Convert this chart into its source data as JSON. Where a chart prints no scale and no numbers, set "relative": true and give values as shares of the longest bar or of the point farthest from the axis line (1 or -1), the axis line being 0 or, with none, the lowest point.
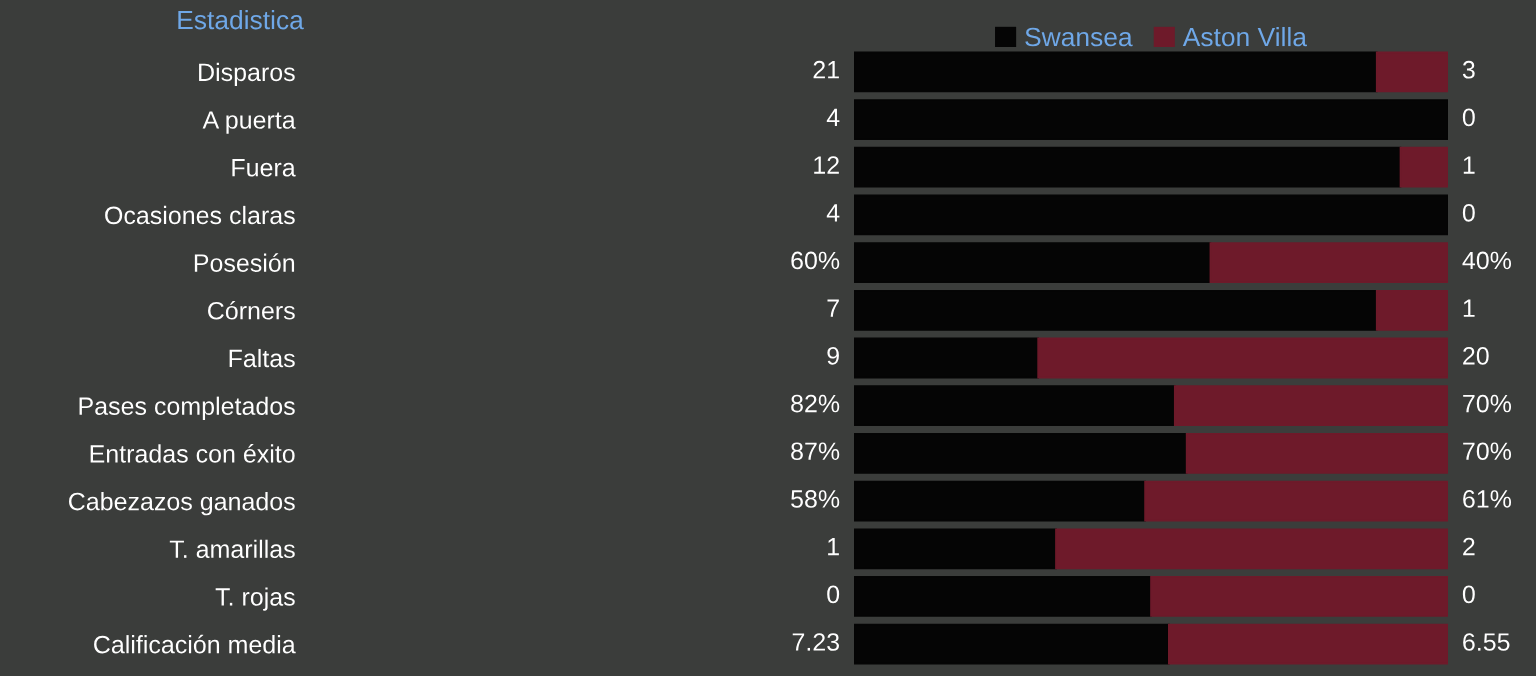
{
  "chart_data": {
    "type": "bar",
    "orientation": "horizontal",
    "stacked": true,
    "relative": true,
    "ylabel": "Estadistica",
    "legend": "top",
    "grid": false,
    "categories": [
      "Disparos",
      "A puerta",
      "Fuera",
      "Ocasiones claras",
      "Posesión",
      "Córners",
      "Faltas",
      "Pases completados",
      "Entradas con éxito",
      "Cabezazos ganados",
      "T. amarillas",
      "T. rojas",
      "Calificación media"
    ],
    "series": [
      {
        "name": "Swansea",
        "color": "#050505",
        "values": [
          0.88,
          1,
          0.92,
          1,
          0.6,
          0.88,
          0.31,
          0.54,
          0.56,
          0.49,
          0.34,
          0.5,
          0.53
        ]
      },
      {
        "name": "Aston Villa",
        "color": "#6e1a2a",
        "values": [
          0.12,
          0,
          0.08,
          0,
          0.4,
          0.12,
          0.69,
          0.46,
          0.44,
          0.51,
          0.66,
          0.5,
          0.47
        ]
      }
    ],
    "annotations": [
      "21",
      "3",
      "4",
      "0",
      "12",
      "1",
      "4",
      "0",
      "60%",
      "40%",
      "7",
      "1",
      "9",
      "20",
      "82%",
      "70%",
      "87%",
      "70%",
      "58%",
      "61%",
      "1",
      "2",
      "0",
      "0",
      "7.23",
      "6.55"
    ]
  }
}
